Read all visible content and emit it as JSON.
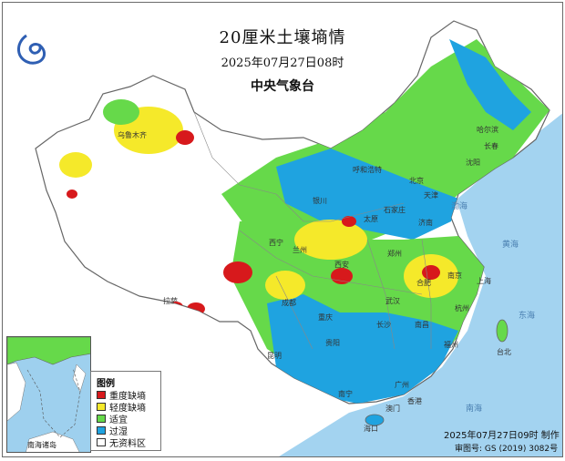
{
  "header": {
    "title": "20厘米土壤墒情",
    "subtitle": "2025年07月27日08时",
    "issuer": "中央气象台"
  },
  "legend": {
    "title": "图例",
    "items": [
      {
        "label": "重度缺墒",
        "color": "#d7191c"
      },
      {
        "label": "轻度缺墒",
        "color": "#f5e92a"
      },
      {
        "label": "适宜",
        "color": "#66d94a"
      },
      {
        "label": "过湿",
        "color": "#1fa3e0"
      },
      {
        "label": "无资料区",
        "color": "#ffffff"
      }
    ]
  },
  "colors": {
    "sea": "#a3d3f0",
    "land_nodata": "#ffffff",
    "border": "#777777"
  },
  "inset": {
    "label": "南海诸岛"
  },
  "footer": {
    "time": "2025年07月27日09时 制作",
    "approval": "审图号: GS (2019) 3082号"
  },
  "place_labels": {
    "wulumuqi": "乌鲁木齐",
    "huhehaote": "呼和浩特",
    "haerbin": "哈尔滨",
    "changchun": "长春",
    "shenyang": "沈阳",
    "beijing": "北京",
    "tianjin": "天津",
    "shijiazhuang": "石家庄",
    "jinan": "济南",
    "yinchuan": "银川",
    "taiyuan": "太原",
    "xining": "西宁",
    "lanzhou": "兰州",
    "zhengzhou": "郑州",
    "xian": "西安",
    "nanjing": "南京",
    "hefei": "合肥",
    "shanghai": "上海",
    "chengdu": "成都",
    "wuhan": "武汉",
    "chongqing": "重庆",
    "hangzhou": "杭州",
    "lasa": "拉萨",
    "changsha": "长沙",
    "nanchang": "南昌",
    "fuzhou": "福州",
    "guiyang": "贵阳",
    "taibei": "台北",
    "kunming": "昆明",
    "guangzhou": "广州",
    "nanning": "南宁",
    "xianggang": "香港",
    "aomen": "澳门",
    "haikou": "海口"
  },
  "sea_labels": {
    "bohai": "渤海",
    "huanghai": "黄海",
    "donghai": "东海",
    "nanhai": "南海"
  }
}
